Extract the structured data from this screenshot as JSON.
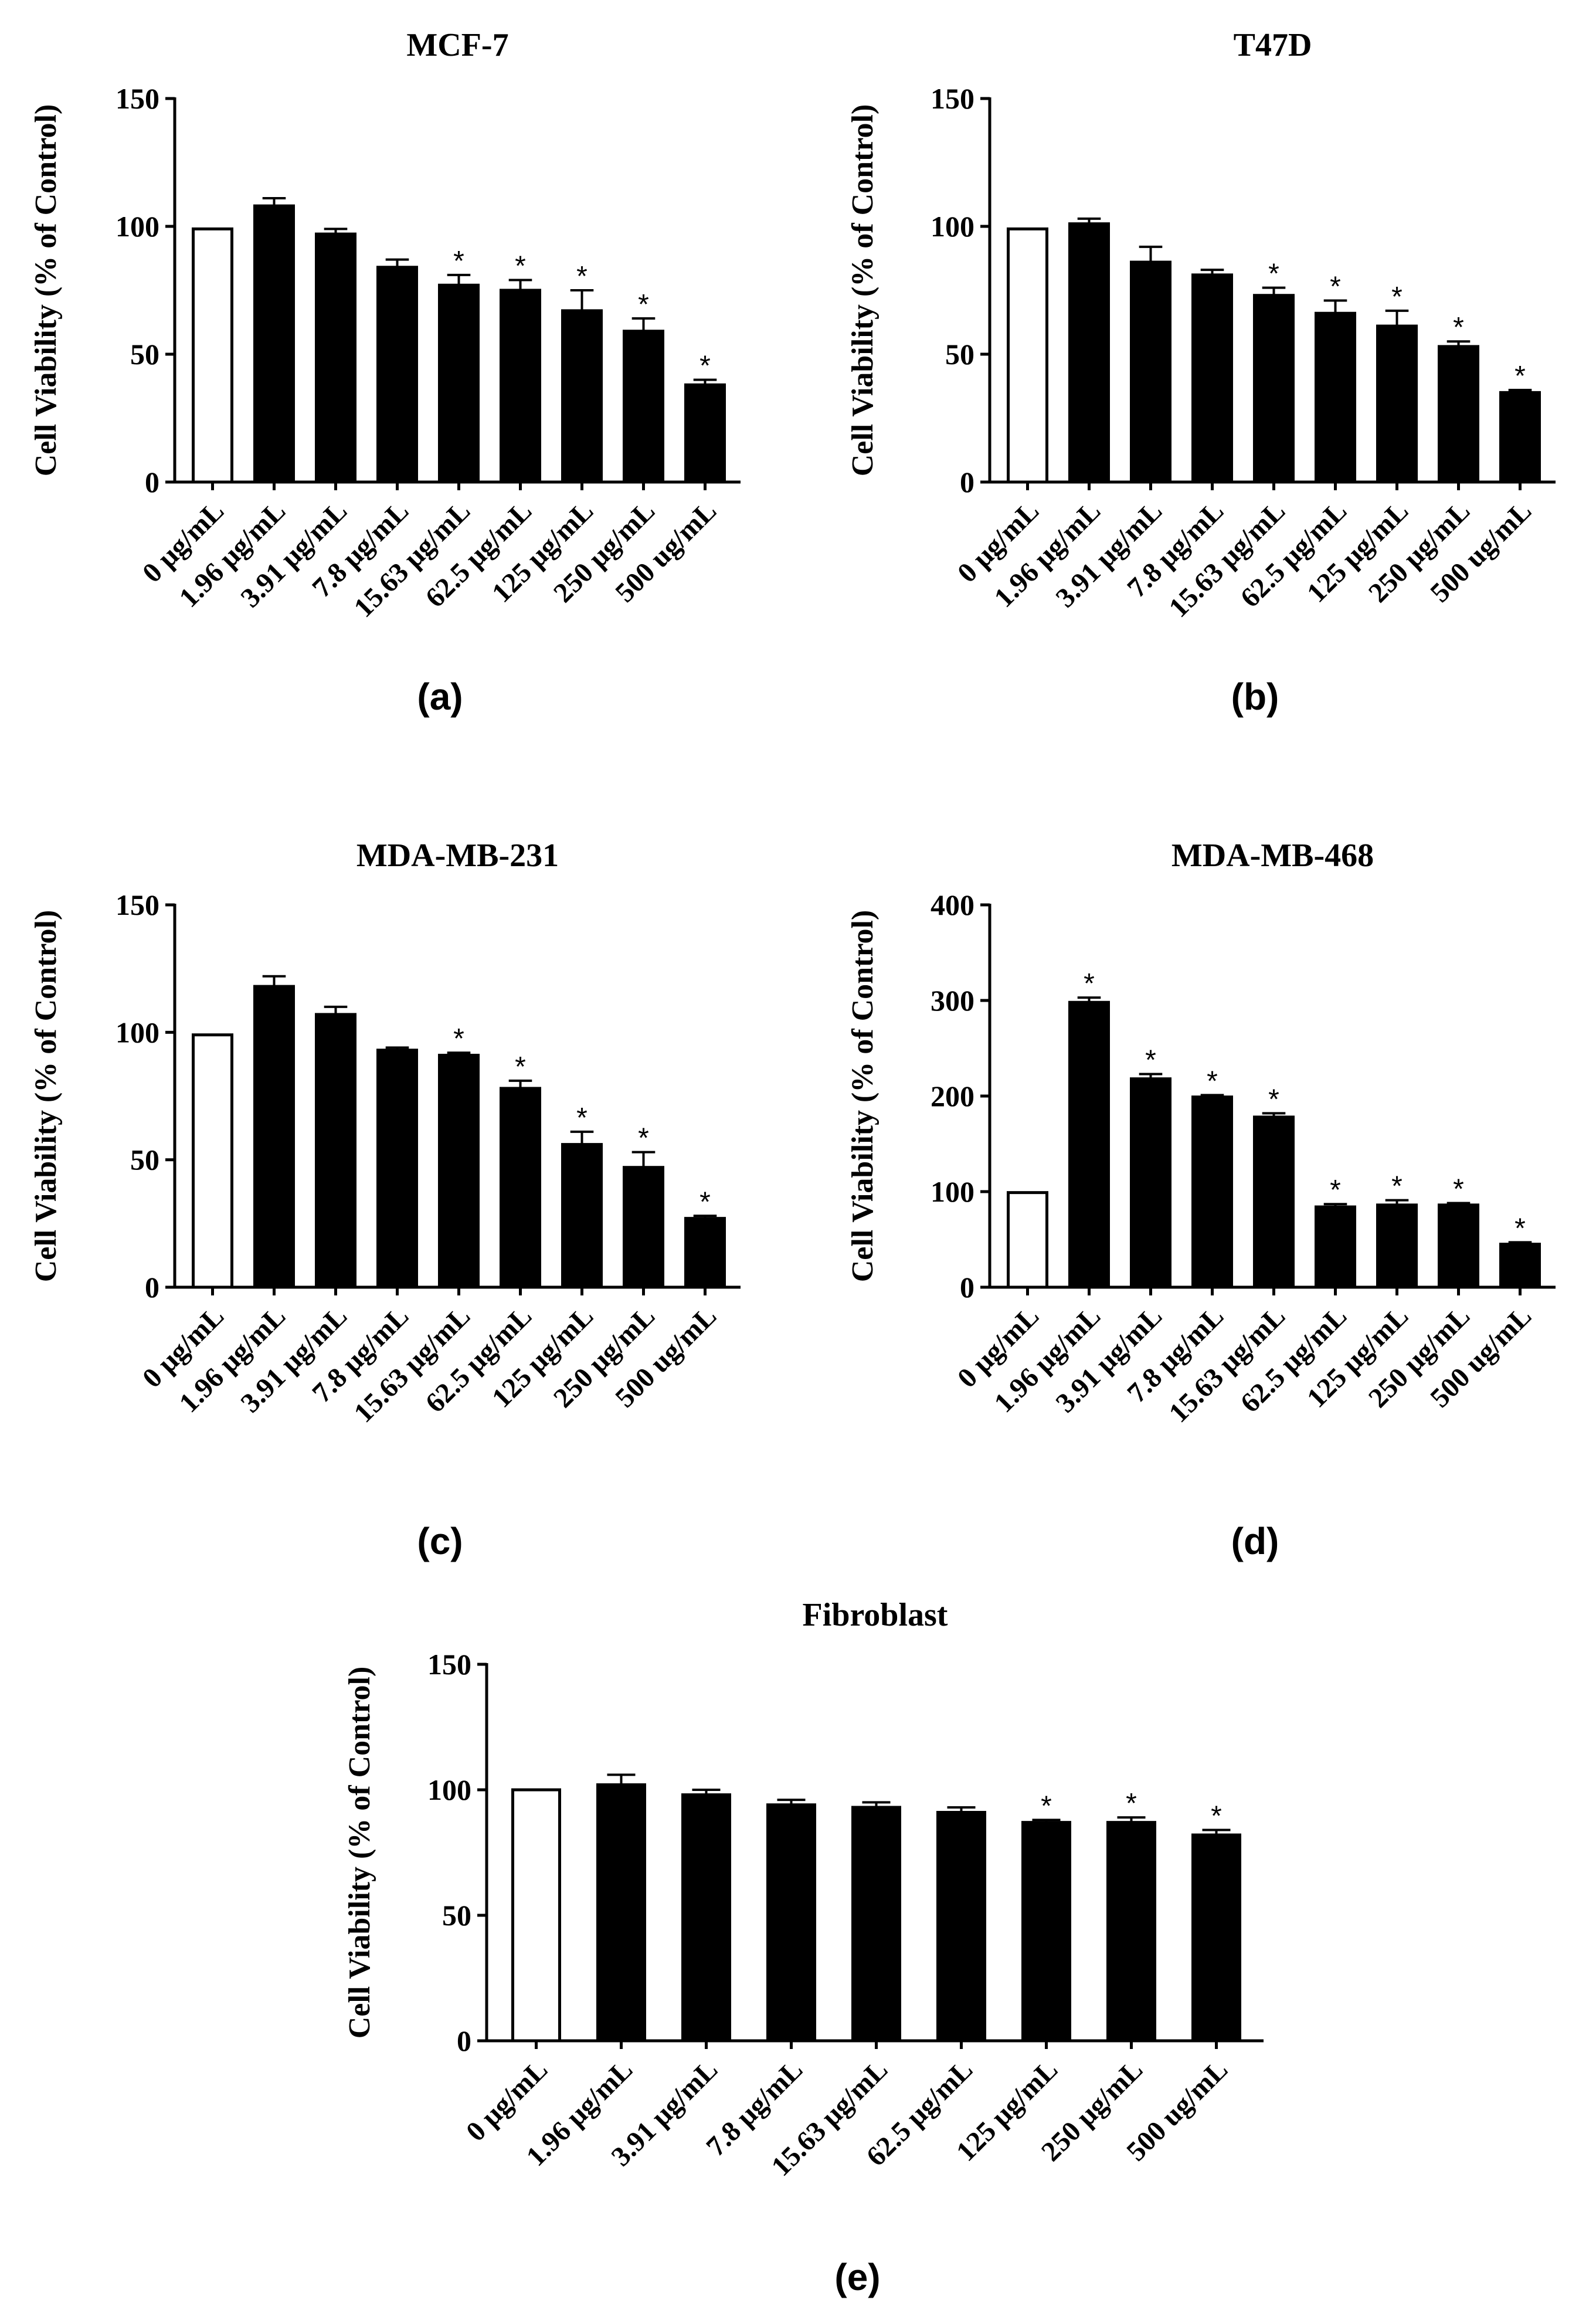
{
  "chart_data": [
    {
      "type": "bar",
      "panel_label": "(a)",
      "title": "MCF-7",
      "ylabel": "Cell Viability (% of Control)",
      "xlabel": "",
      "ylim": [
        0,
        150
      ],
      "yticks": [
        0,
        50,
        100,
        150
      ],
      "categories": [
        "0 μg/mL",
        "1.96 μg/mL",
        "3.91 μg/mL",
        "7.8 μg/mL",
        "15.63 μg/mL",
        "62.5 μg/mL",
        "125 μg/mL",
        "250 μg/mL",
        "500 ug/mL"
      ],
      "values": [
        99,
        108,
        97,
        84,
        77,
        75,
        67,
        59,
        38
      ],
      "errors": [
        0,
        3,
        2,
        3,
        4,
        4,
        8,
        5,
        2
      ],
      "significant": [
        false,
        false,
        false,
        false,
        true,
        true,
        true,
        true,
        true
      ],
      "fills": [
        "#ffffff",
        "#000000",
        "#000000",
        "#000000",
        "#000000",
        "#000000",
        "#000000",
        "#000000",
        "#000000"
      ],
      "marker": "*"
    },
    {
      "type": "bar",
      "panel_label": "(b)",
      "title": "T47D",
      "ylabel": "Cell Viability (% of Control)",
      "xlabel": "",
      "ylim": [
        0,
        150
      ],
      "yticks": [
        0,
        50,
        100,
        150
      ],
      "categories": [
        "0 μg/mL",
        "1.96 μg/mL",
        "3.91 μg/mL",
        "7.8 μg/mL",
        "15.63 μg/mL",
        "62.5 μg/mL",
        "125 μg/mL",
        "250 μg/mL",
        "500 ug/mL"
      ],
      "values": [
        99,
        101,
        86,
        81,
        73,
        66,
        61,
        53,
        35
      ],
      "errors": [
        0,
        2,
        6,
        2,
        3,
        5,
        6,
        2,
        1
      ],
      "significant": [
        false,
        false,
        false,
        false,
        true,
        true,
        true,
        true,
        true
      ],
      "fills": [
        "#ffffff",
        "#000000",
        "#000000",
        "#000000",
        "#000000",
        "#000000",
        "#000000",
        "#000000",
        "#000000"
      ],
      "marker": "*"
    },
    {
      "type": "bar",
      "panel_label": "(c)",
      "title": "MDA-MB-231",
      "ylabel": "Cell Viability (% of Control)",
      "xlabel": "",
      "ylim": [
        0,
        150
      ],
      "yticks": [
        0,
        50,
        100,
        150
      ],
      "categories": [
        "0 μg/mL",
        "1.96 μg/mL",
        "3.91 μg/mL",
        "7.8 μg/mL",
        "15.63 μg/mL",
        "62.5 μg/mL",
        "125 μg/mL",
        "250 μg/mL",
        "500 ug/mL"
      ],
      "values": [
        99,
        118,
        107,
        93,
        91,
        78,
        56,
        47,
        27
      ],
      "errors": [
        0,
        4,
        3,
        1,
        1,
        3,
        5,
        6,
        1
      ],
      "significant": [
        false,
        false,
        false,
        false,
        true,
        true,
        true,
        true,
        true
      ],
      "fills": [
        "#ffffff",
        "#000000",
        "#000000",
        "#000000",
        "#000000",
        "#000000",
        "#000000",
        "#000000",
        "#000000"
      ],
      "marker": "*"
    },
    {
      "type": "bar",
      "panel_label": "(d)",
      "title": "MDA-MB-468",
      "ylabel": "Cell Viability (% of Control)",
      "xlabel": "",
      "ylim": [
        0,
        400
      ],
      "yticks": [
        0,
        100,
        200,
        300,
        400
      ],
      "categories": [
        "0 μg/mL",
        "1.96 μg/mL",
        "3.91 μg/mL",
        "7.8 μg/mL",
        "15.63 μg/mL",
        "62.5 μg/mL",
        "125 μg/mL",
        "250 μg/mL",
        "500 ug/mL"
      ],
      "values": [
        99,
        298,
        218,
        199,
        178,
        84,
        86,
        86,
        45
      ],
      "errors": [
        0,
        5,
        5,
        2,
        4,
        3,
        5,
        2,
        2
      ],
      "significant": [
        false,
        true,
        true,
        true,
        true,
        true,
        true,
        true,
        true
      ],
      "fills": [
        "#ffffff",
        "#000000",
        "#000000",
        "#000000",
        "#000000",
        "#000000",
        "#000000",
        "#000000",
        "#000000"
      ],
      "marker": "*"
    },
    {
      "type": "bar",
      "panel_label": "(e)",
      "title": "Fibroblast",
      "ylabel": "Cell Viability (% of Control)",
      "xlabel": "",
      "ylim": [
        0,
        150
      ],
      "yticks": [
        0,
        50,
        100,
        150
      ],
      "categories": [
        "0 μg/mL",
        "1.96 μg/mL",
        "3.91 μg/mL",
        "7.8 μg/mL",
        "15.63 μg/mL",
        "62.5 μg/mL",
        "125 μg/mL",
        "250 μg/mL",
        "500 ug/mL"
      ],
      "values": [
        100,
        102,
        98,
        94,
        93,
        91,
        87,
        87,
        82
      ],
      "errors": [
        0,
        4,
        2,
        2,
        2,
        2,
        1,
        2,
        2
      ],
      "significant": [
        false,
        false,
        false,
        false,
        false,
        false,
        true,
        true,
        true
      ],
      "fills": [
        "#ffffff",
        "#000000",
        "#000000",
        "#000000",
        "#000000",
        "#000000",
        "#000000",
        "#000000",
        "#000000"
      ],
      "marker": "*"
    }
  ]
}
